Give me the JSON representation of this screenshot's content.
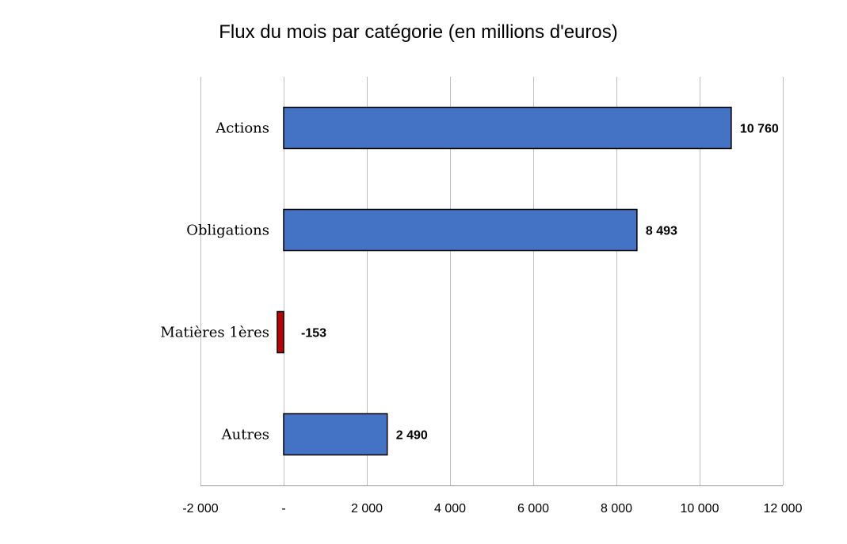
{
  "chart_data": {
    "type": "bar",
    "orientation": "horizontal",
    "title": "Flux du mois par catégorie (en millions d'euros)",
    "categories": [
      "Actions",
      "Obligations",
      "Matières 1ères",
      "Autres"
    ],
    "values": [
      10760,
      8493,
      -153,
      2490
    ],
    "value_labels": [
      "10 760",
      "8 493",
      "-153",
      "2 490"
    ],
    "xlim": [
      -2000,
      12000
    ],
    "x_ticks": [
      -2000,
      0,
      2000,
      4000,
      6000,
      8000,
      10000,
      12000
    ],
    "x_tick_labels": [
      "-2 000",
      "-",
      "2 000",
      "4 000",
      "6 000",
      "8 000",
      "10 000",
      "12 000"
    ],
    "grid": "vertical",
    "legend": "none",
    "colors": {
      "positive": "#4472C4",
      "negative": "#C00000"
    }
  }
}
